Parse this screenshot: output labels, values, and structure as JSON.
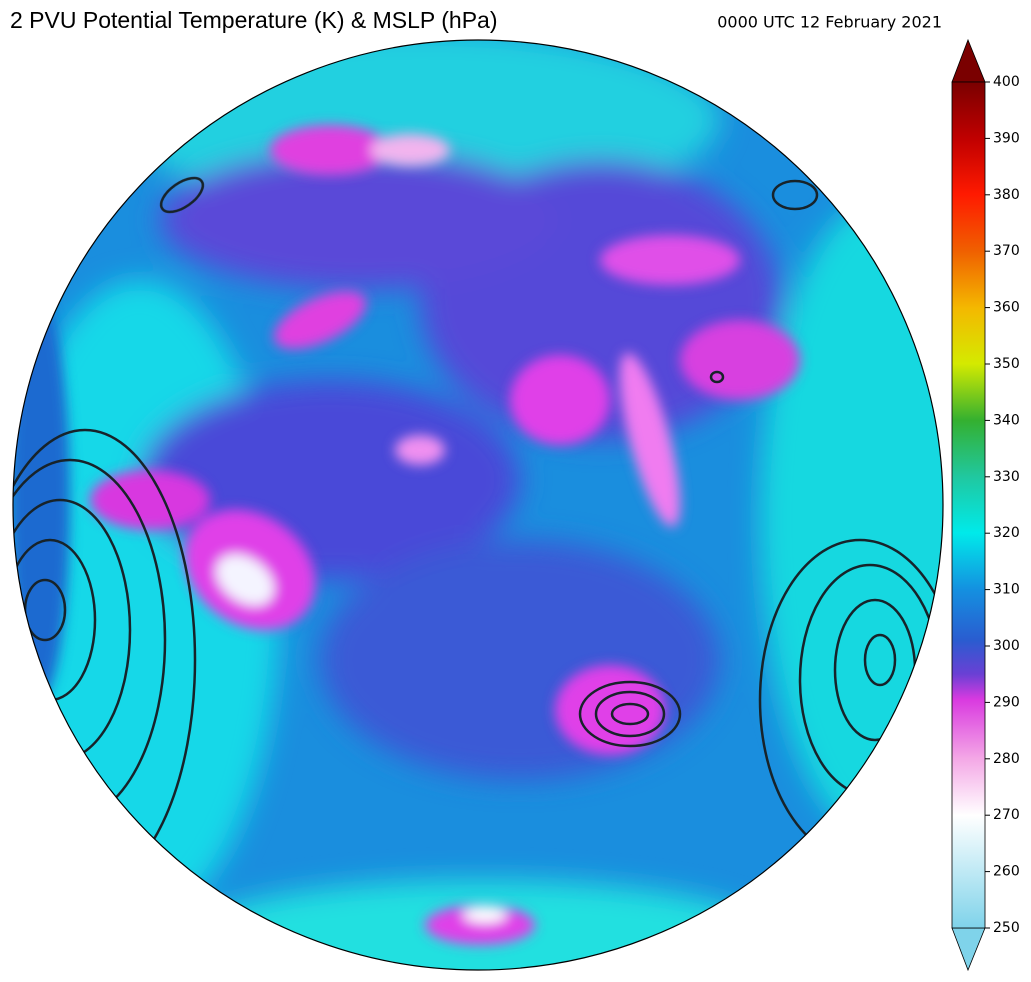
{
  "title": "2 PVU Potential Temperature (K) & MSLP (hPa)",
  "timestamp": "0000 UTC 12 February 2021",
  "colorbar": {
    "lim": [
      250,
      400
    ],
    "ticks": [
      250,
      260,
      270,
      280,
      290,
      300,
      310,
      320,
      330,
      340,
      350,
      360,
      370,
      380,
      390,
      400
    ]
  }
}
